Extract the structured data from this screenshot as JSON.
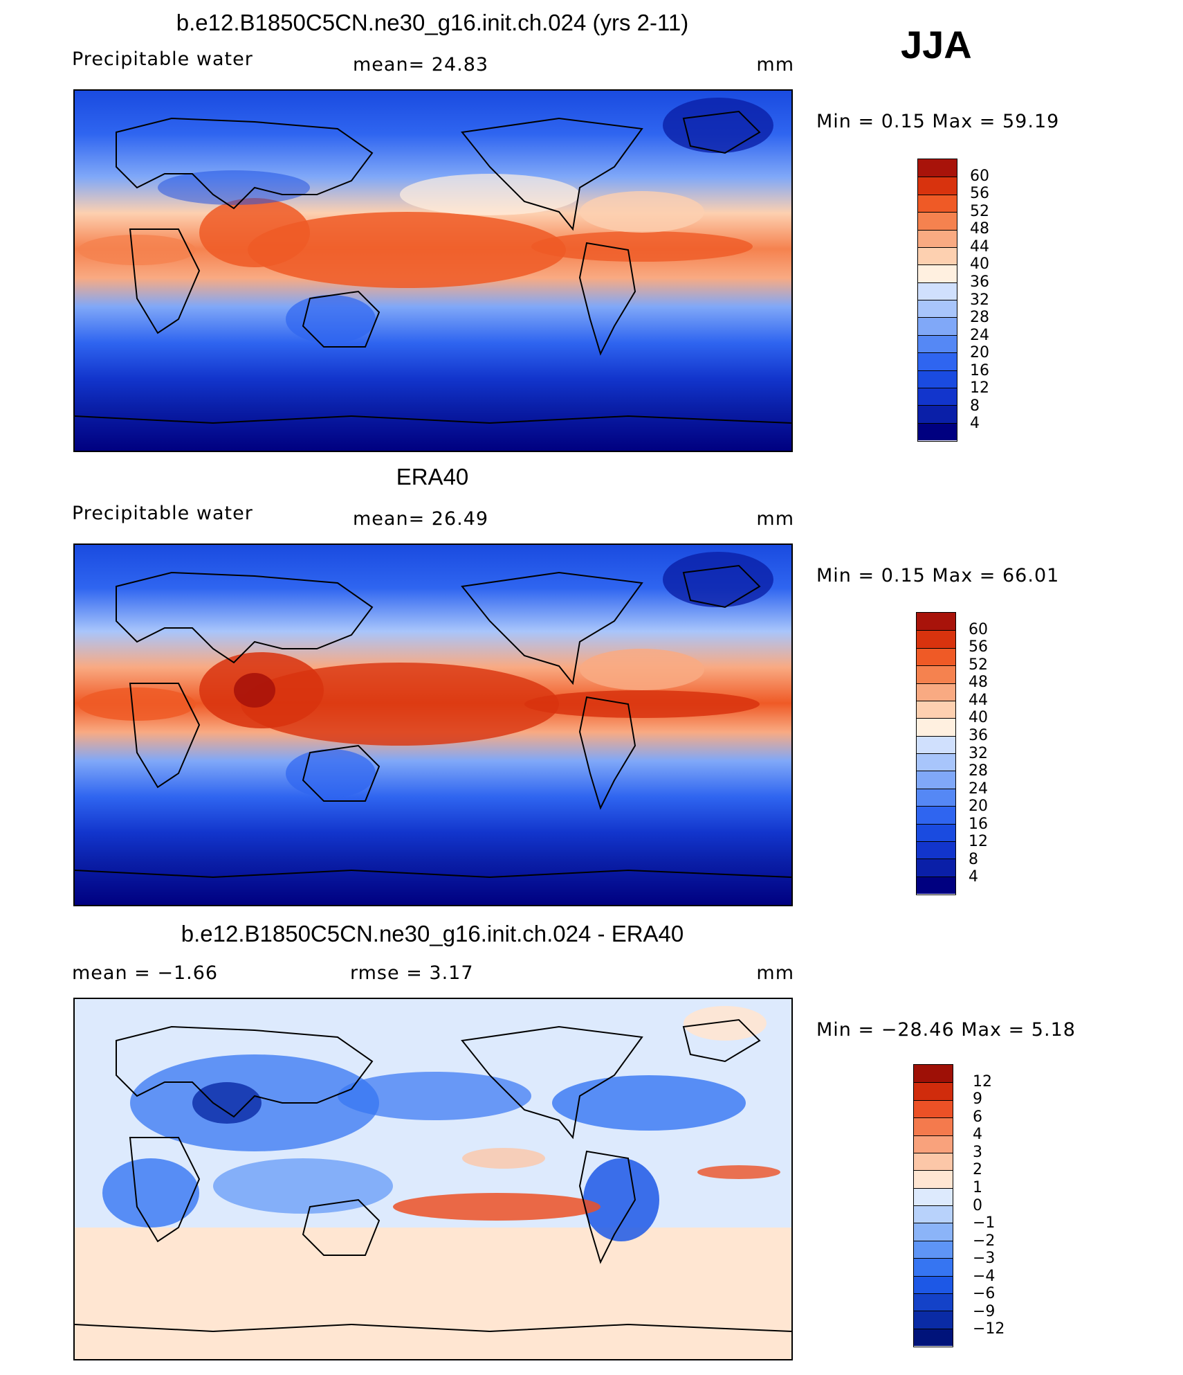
{
  "season": "JJA",
  "panels": [
    {
      "title": "b.e12.B1850C5CN.ne30_g16.init.ch.024 (yrs 2-11)",
      "left_label": "Precipitable  water",
      "mid_label": "mean=   24.83",
      "units": "mm",
      "minmax": "Min  =     0.15  Max  =    59.19",
      "scale": "precip",
      "colorbar_labels": [
        "60",
        "56",
        "52",
        "48",
        "44",
        "40",
        "36",
        "32",
        "28",
        "24",
        "20",
        "16",
        "12",
        "8",
        "4"
      ]
    },
    {
      "title": "ERA40",
      "left_label": "Precipitable  water",
      "mid_label": "mean=   26.49",
      "units": "mm",
      "minmax": "Min  =     0.15  Max  =    66.01",
      "scale": "precip",
      "colorbar_labels": [
        "60",
        "56",
        "52",
        "48",
        "44",
        "40",
        "36",
        "32",
        "28",
        "24",
        "20",
        "16",
        "12",
        "8",
        "4"
      ]
    },
    {
      "title": "b.e12.B1850C5CN.ne30_g16.init.ch.024 - ERA40",
      "left_label": "mean  =    −1.66",
      "mid_label": "rmse  =      3.17",
      "units": "mm",
      "minmax": "Min  = −28.46  Max  =     5.18",
      "scale": "diff",
      "colorbar_labels": [
        "12",
        "9",
        "6",
        "4",
        "3",
        "2",
        "1",
        "0",
        "−1",
        "−2",
        "−3",
        "−4",
        "−6",
        "−9",
        "−12"
      ]
    }
  ],
  "colors": {
    "precip": [
      "#000080",
      "#0a1fa8",
      "#1235cc",
      "#1a4be0",
      "#2f65f0",
      "#5588f5",
      "#80a8f8",
      "#a8c5fb",
      "#d0e0fd",
      "#fff0e0",
      "#fdd0b0",
      "#f9aa82",
      "#f5824f",
      "#ef5a26",
      "#d8330e",
      "#a8130a"
    ],
    "diff": [
      "#00137a",
      "#0a2ba5",
      "#1442c8",
      "#1d58e6",
      "#3675f2",
      "#5e95f6",
      "#8bb4f8",
      "#b8d2fb",
      "#ddeafd",
      "#ffe6d2",
      "#fcc7a8",
      "#f9a27c",
      "#f47a4d",
      "#ec5126",
      "#d02c0c",
      "#9e1006"
    ]
  }
}
